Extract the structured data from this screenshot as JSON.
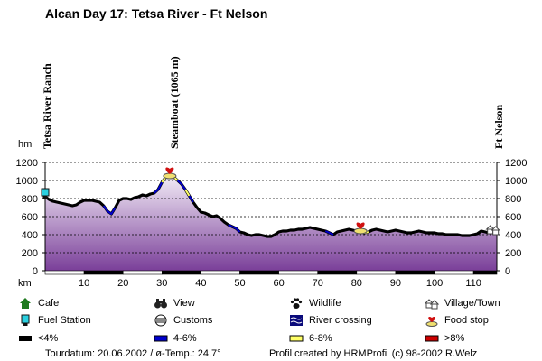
{
  "chart_data": {
    "type": "area",
    "title": "Alcan Day 17: Tetsa River - Ft Nelson",
    "xlabel": "km",
    "ylabel": "hm",
    "xlim": [
      0,
      116
    ],
    "ylim": [
      0,
      1200
    ],
    "x_ticks": [
      10,
      20,
      30,
      40,
      50,
      60,
      70,
      80,
      90,
      100,
      110
    ],
    "y_ticks": [
      0,
      200,
      400,
      600,
      800,
      1000,
      1200
    ],
    "grid": true,
    "places": [
      {
        "name": "Tetsa River Ranch",
        "km": 0
      },
      {
        "name": "Steamboat (1065 m)",
        "km": 32
      },
      {
        "name": "Ft Nelson",
        "km": 116
      }
    ],
    "profile": {
      "x": [
        0,
        1,
        2,
        3,
        4,
        5,
        6,
        7,
        8,
        9,
        10,
        11,
        12,
        13,
        14,
        15,
        16,
        17,
        18,
        19,
        20,
        21,
        22,
        23,
        24,
        25,
        26,
        27,
        28,
        29,
        30,
        31,
        32,
        33,
        34,
        35,
        36,
        37,
        38,
        39,
        40,
        41,
        42,
        43,
        44,
        45,
        46,
        47,
        48,
        49,
        50,
        51,
        52,
        53,
        54,
        55,
        56,
        57,
        58,
        59,
        60,
        61,
        62,
        63,
        64,
        65,
        66,
        67,
        68,
        69,
        70,
        71,
        72,
        73,
        74,
        75,
        76,
        77,
        78,
        79,
        80,
        81,
        82,
        83,
        84,
        85,
        86,
        87,
        88,
        89,
        90,
        91,
        92,
        93,
        94,
        95,
        96,
        97,
        98,
        99,
        100,
        101,
        102,
        103,
        104,
        105,
        106,
        107,
        108,
        109,
        110,
        111,
        112,
        113,
        114,
        115,
        116
      ],
      "y": [
        820,
        790,
        770,
        760,
        750,
        740,
        730,
        720,
        730,
        760,
        780,
        780,
        780,
        770,
        760,
        720,
        660,
        630,
        700,
        780,
        800,
        800,
        790,
        810,
        820,
        840,
        830,
        850,
        860,
        900,
        980,
        1040,
        1065,
        1040,
        1000,
        960,
        900,
        830,
        760,
        700,
        650,
        640,
        620,
        600,
        610,
        580,
        540,
        510,
        490,
        470,
        430,
        420,
        400,
        390,
        400,
        400,
        390,
        380,
        380,
        400,
        430,
        440,
        440,
        450,
        450,
        460,
        460,
        470,
        480,
        470,
        460,
        450,
        440,
        420,
        400,
        430,
        440,
        450,
        460,
        450,
        440,
        430,
        420,
        430,
        450,
        460,
        450,
        440,
        430,
        440,
        450,
        440,
        430,
        420,
        420,
        430,
        440,
        430,
        420,
        420,
        420,
        410,
        410,
        400,
        400,
        400,
        400,
        390,
        390,
        390,
        400,
        410,
        440,
        430,
        420,
        430,
        460
      ],
      "grade_segments": [
        {
          "from": 0,
          "to": 15,
          "grade": "<4%"
        },
        {
          "from": 15,
          "to": 18,
          "grade": "4-6%"
        },
        {
          "from": 18,
          "to": 28,
          "grade": "<4%"
        },
        {
          "from": 28,
          "to": 30,
          "grade": "4-6%"
        },
        {
          "from": 30,
          "to": 34,
          "grade": "6-8%"
        },
        {
          "from": 34,
          "to": 36,
          "grade": "4-6%"
        },
        {
          "from": 36,
          "to": 37,
          "grade": "6-8%"
        },
        {
          "from": 37,
          "to": 38,
          "grade": "4-6%"
        },
        {
          "from": 38,
          "to": 47,
          "grade": "<4%"
        },
        {
          "from": 47,
          "to": 50,
          "grade": "4-6%"
        },
        {
          "from": 50,
          "to": 72,
          "grade": "<4%"
        },
        {
          "from": 72,
          "to": 74,
          "grade": "4-6%"
        },
        {
          "from": 74,
          "to": 80,
          "grade": "<4%"
        },
        {
          "from": 80,
          "to": 83,
          "grade": "6-8%"
        },
        {
          "from": 83,
          "to": 116,
          "grade": "<4%"
        }
      ]
    },
    "pois": [
      {
        "type": "Fuel Station",
        "km": 0,
        "elevation": 860
      },
      {
        "type": "Food stop",
        "km": 32,
        "elevation": 1100
      },
      {
        "type": "Food stop",
        "km": 81,
        "elevation": 490
      },
      {
        "type": "Village/Town",
        "km": 115,
        "elevation": 460
      }
    ],
    "grade_colors": {
      "<4%": "#000000",
      "4-6%": "#0000cc",
      "6-8%": "#ffff66",
      ">8%": "#cc0000"
    },
    "fill_top_color": "#f4eef8",
    "fill_bottom_color": "#7a3f99"
  },
  "legend": {
    "items": [
      {
        "label": "Cafe",
        "icon": "cafe-icon"
      },
      {
        "label": "View",
        "icon": "binoculars-icon"
      },
      {
        "label": "Wildlife",
        "icon": "paw-icon"
      },
      {
        "label": "Village/Town",
        "icon": "village-icon"
      },
      {
        "label": "Fuel Station",
        "icon": "fuel-pump-icon"
      },
      {
        "label": "Customs",
        "icon": "customs-icon"
      },
      {
        "label": "River crossing",
        "icon": "river-crossing-icon"
      },
      {
        "label": "Food stop",
        "icon": "food-stop-icon"
      },
      {
        "label": "<4%",
        "icon": "grade-under-4-swatch"
      },
      {
        "label": "4-6%",
        "icon": "grade-4-6-swatch"
      },
      {
        "label": "6-8%",
        "icon": "grade-6-8-swatch"
      },
      {
        "label": ">8%",
        "icon": "grade-over-8-swatch"
      }
    ]
  },
  "footer": {
    "left": "Tourdatum: 20.06.2002  /  ø-Temp.: 24,7°",
    "right": "Profil created by HRMProfil (c) 98-2002 R.Welz"
  }
}
